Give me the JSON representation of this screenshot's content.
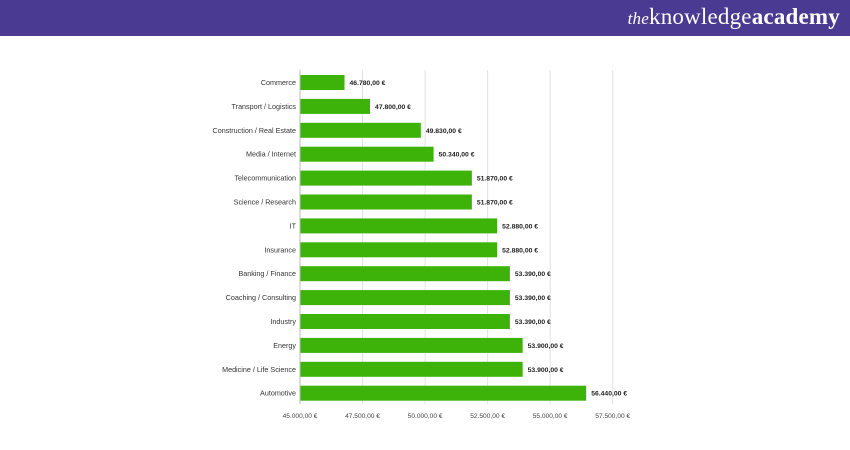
{
  "brand": {
    "prefix": "the",
    "word1": "knowledge",
    "word2": "academy"
  },
  "chart_data": {
    "type": "bar",
    "orientation": "horizontal",
    "categories": [
      "Commerce",
      "Transport / Logistics",
      "Construction / Real Estate",
      "Media / Internet",
      "Telecommunication",
      "Science / Research",
      "IT",
      "Insurance",
      "Banking / Finance",
      "Coaching / Consulting",
      "Industry",
      "Energy",
      "Medicine / Life Science",
      "Automotive"
    ],
    "values": [
      46780,
      47800,
      49830,
      50340,
      51870,
      51870,
      52880,
      52880,
      53390,
      53390,
      53390,
      53900,
      53900,
      56440
    ],
    "value_labels": [
      "46.780,00 €",
      "47.800,00 €",
      "49.830,00 €",
      "50.340,00 €",
      "51.870,00 €",
      "51.870,00 €",
      "52.880,00 €",
      "52.880,00 €",
      "53.390,00 €",
      "53.390,00 €",
      "53.390,00 €",
      "53.900,00 €",
      "53.900,00 €",
      "56.440,00 €"
    ],
    "xlim": [
      45000,
      58750
    ],
    "xticks": [
      45000,
      47500,
      50000,
      52500,
      55000,
      57500
    ],
    "xtick_labels": [
      "45.000,00 €",
      "47.500,00 €",
      "50.000,00 €",
      "52.500,00 €",
      "55.000,00 €",
      "57.500,00 €"
    ],
    "title": "",
    "xlabel": "",
    "ylabel": "",
    "grid": true,
    "bar_color": "#3db30a",
    "grid_color": "#e2e2e2"
  }
}
